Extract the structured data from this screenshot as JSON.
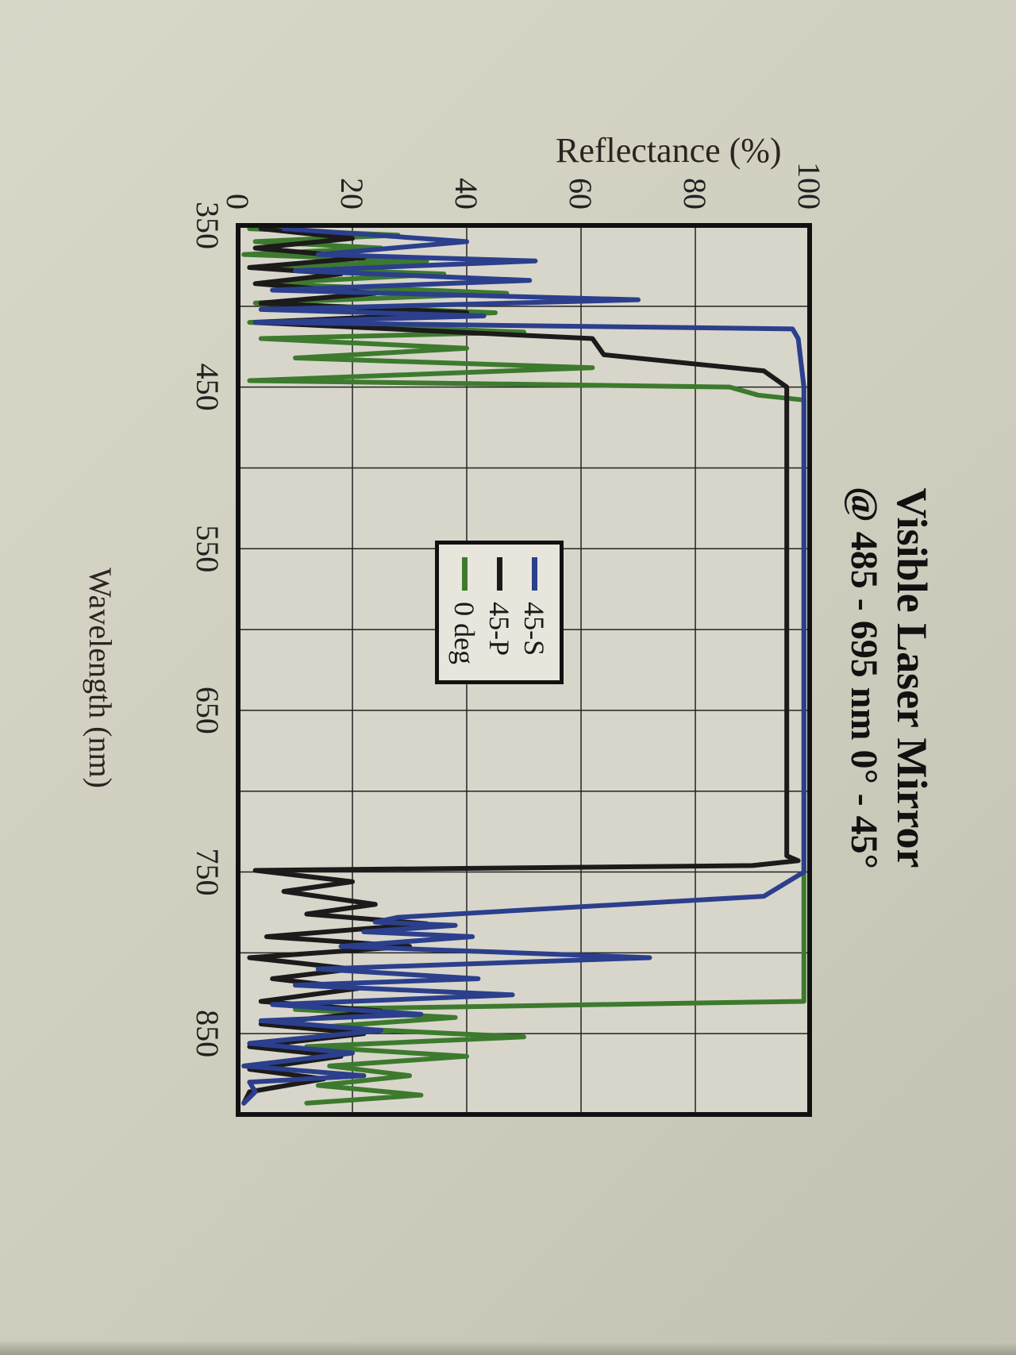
{
  "chart_data": {
    "type": "line",
    "title": "Visible Laser Mirror",
    "subtitle": "@ 485 - 695 nm 0° - 45°",
    "xlabel": "Wavelength (nm)",
    "ylabel": "Reflectance (%)",
    "xlim": [
      350,
      900
    ],
    "ylim": [
      0,
      100
    ],
    "x_ticks": [
      350,
      450,
      550,
      650,
      750,
      850
    ],
    "y_ticks": [
      0,
      20,
      40,
      60,
      80,
      100
    ],
    "grid": true,
    "legend_position": "center",
    "series": [
      {
        "name": "45-S",
        "color": "#2b3f8c",
        "x": [
          352,
          360,
          368,
          372,
          378,
          384,
          390,
          396,
          402,
          406,
          410,
          414,
          420,
          450,
          550,
          650,
          750,
          765,
          778,
          781,
          783,
          787,
          790,
          796,
          803,
          810,
          816,
          820,
          826,
          832,
          838,
          842,
          848,
          856,
          862,
          870,
          876,
          880,
          886,
          893
        ],
        "y": [
          8,
          40,
          14,
          52,
          10,
          51,
          6,
          70,
          4,
          43,
          3,
          97,
          98,
          99,
          99,
          99,
          99,
          92,
          28,
          24,
          38,
          22,
          41,
          18,
          72,
          14,
          42,
          10,
          48,
          6,
          32,
          4,
          25,
          2,
          20,
          1,
          22,
          2,
          3,
          1
        ]
      },
      {
        "name": "45-P",
        "color": "#1c1a1a",
        "x": [
          352,
          358,
          364,
          370,
          376,
          380,
          386,
          392,
          398,
          404,
          410,
          420,
          430,
          440,
          450,
          550,
          650,
          700,
          740,
          743,
          746,
          749,
          756,
          762,
          770,
          776,
          782,
          790,
          796,
          803,
          810,
          816,
          822,
          830,
          836,
          844,
          850,
          858,
          864,
          872,
          878,
          886,
          893
        ],
        "y": [
          4,
          20,
          3,
          22,
          2,
          18,
          3,
          24,
          4,
          40,
          3,
          62,
          64,
          92,
          96,
          96,
          96,
          96,
          96,
          98,
          90,
          3,
          20,
          8,
          24,
          12,
          33,
          5,
          30,
          2,
          20,
          6,
          21,
          4,
          25,
          4,
          22,
          2,
          18,
          2,
          15,
          2,
          1
        ]
      },
      {
        "name": "0 deg",
        "color": "#3d7a2e",
        "x": [
          352,
          356,
          360,
          364,
          368,
          372,
          376,
          380,
          386,
          392,
          398,
          404,
          410,
          416,
          420,
          426,
          432,
          438,
          446,
          450,
          455,
          458,
          550,
          650,
          750,
          800,
          830,
          835,
          840,
          846,
          852,
          858,
          864,
          870,
          876,
          882,
          888,
          893
        ],
        "y": [
          2,
          28,
          3,
          25,
          1,
          33,
          2,
          36,
          4,
          47,
          3,
          45,
          2,
          50,
          4,
          40,
          10,
          62,
          2,
          86,
          91,
          99,
          99,
          99,
          99,
          99,
          99,
          10,
          38,
          14,
          50,
          12,
          40,
          16,
          30,
          14,
          32,
          12
        ]
      }
    ]
  },
  "legend": {
    "items": [
      {
        "label": "45-S",
        "color": "#2b3f8c"
      },
      {
        "label": "45-P",
        "color": "#1c1a1a"
      },
      {
        "label": "0 deg",
        "color": "#3d7a2e"
      }
    ]
  }
}
